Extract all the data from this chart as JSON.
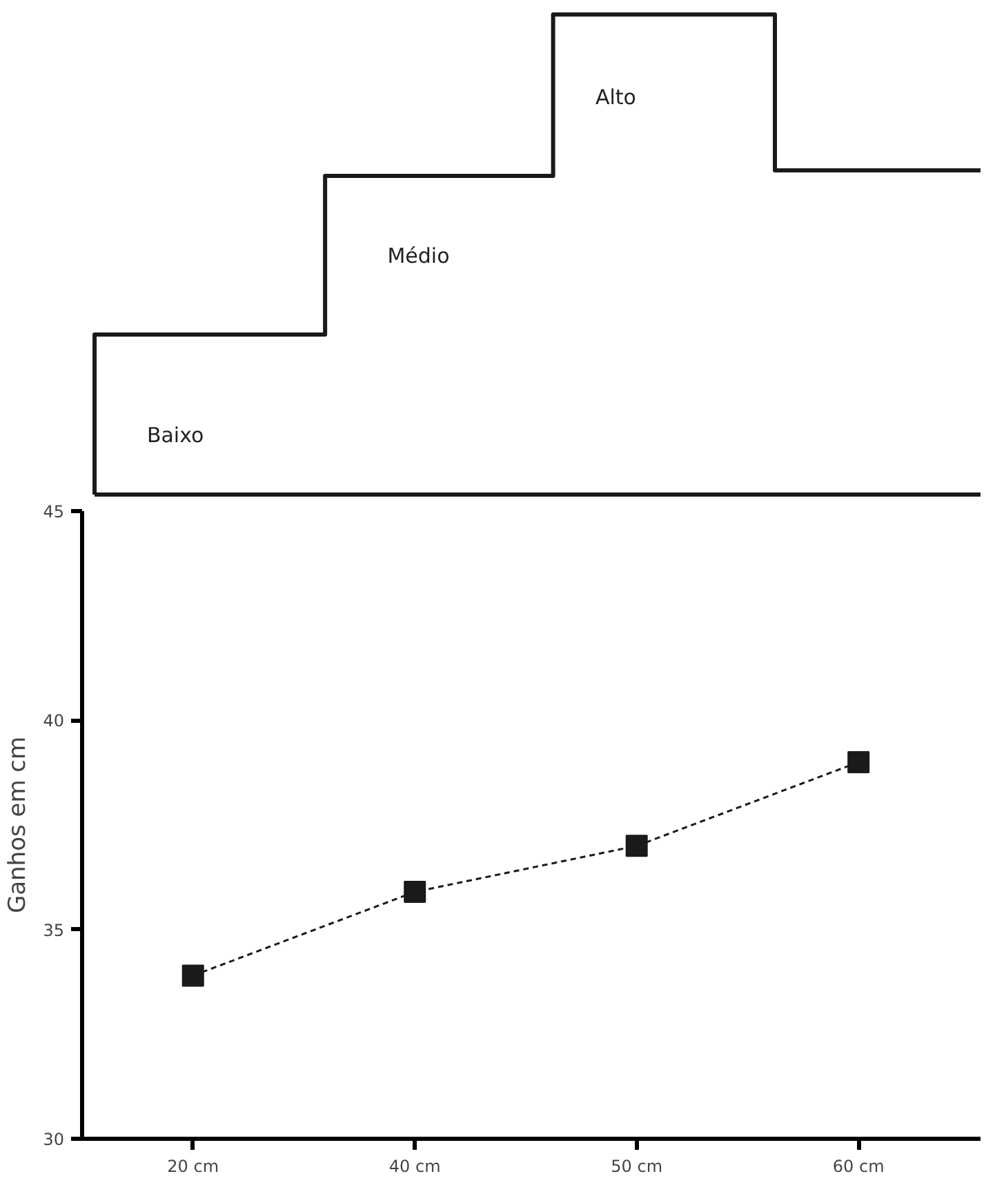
{
  "chart_data": [
    {
      "type": "other",
      "annotations": [
        "Baixo",
        "Médio",
        "Alto"
      ]
    },
    {
      "type": "line",
      "categories": [
        "20 cm",
        "40 cm",
        "50 cm",
        "60 cm"
      ],
      "ylabel": "Ganhos em cm",
      "ylim": [
        30,
        45
      ],
      "yticks": [
        30,
        35,
        40,
        45
      ],
      "grid": false,
      "marker": "square",
      "line_style": "dashed",
      "series": [
        {
          "color": "#1a1a1a",
          "values": [
            33.9,
            35.9,
            37.0,
            39.0
          ]
        }
      ]
    }
  ]
}
